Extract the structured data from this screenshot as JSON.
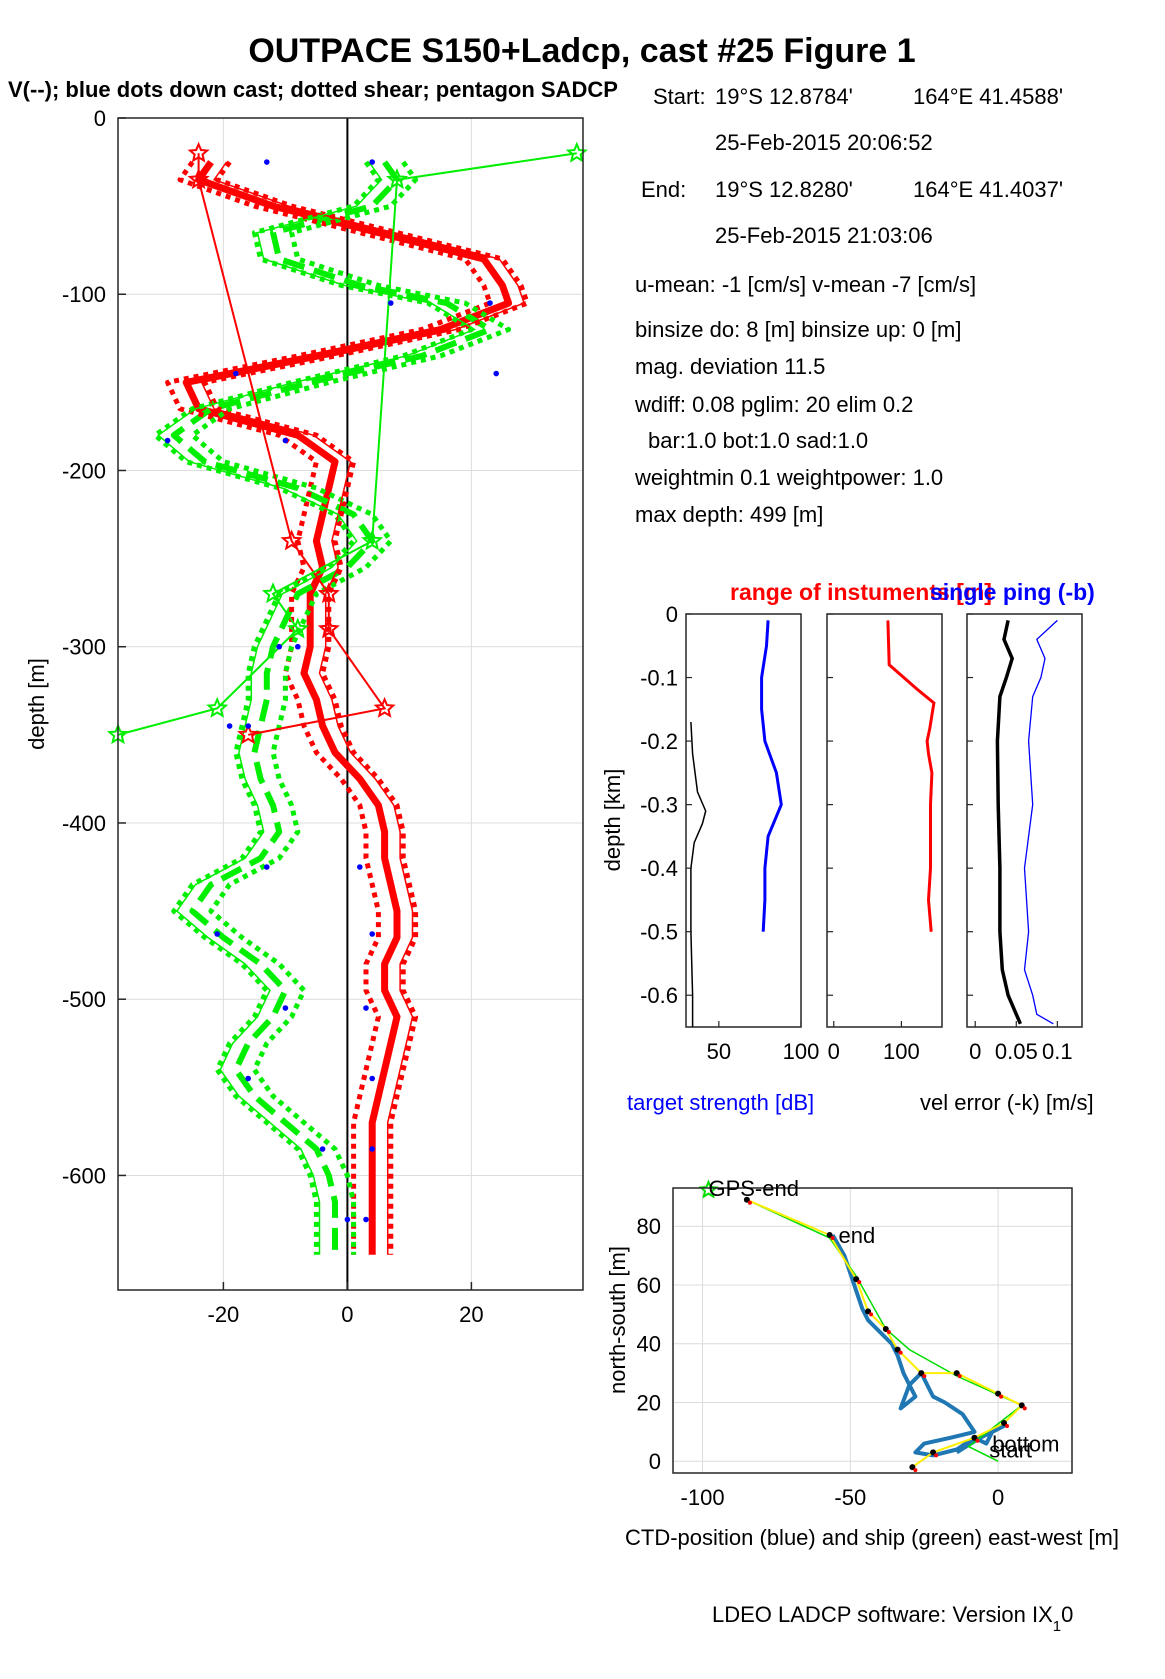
{
  "figure": {
    "title": "OUTPACE S150+Ladcp, cast #25  Figure 1",
    "subtitle": "V(--); blue dots down cast; dotted shear; pentagon SADCP",
    "footer": "LDEO LADCP software: Version IX",
    "footer_sub": "1",
    "footer_tail": "0"
  },
  "info": {
    "start_label": "Start:",
    "start_lat": "19°S 12.8784'",
    "start_lon": "164°E 41.4588'",
    "start_time": "25-Feb-2015 20:06:52",
    "end_label": "End:",
    "end_lat": "19°S 12.8280'",
    "end_lon": "164°E 41.4037'",
    "end_time": "25-Feb-2015 21:03:06",
    "mean_line": "u-mean:  -1 [cm/s]    v-mean  -7 [cm/s]",
    "binsize_line": "binsize do: 8 [m]  binsize up:  0 [m]",
    "magdev_line": "mag. deviation 11.5",
    "wdiff_line": "wdiff: 0.08  pglim: 20  elim 0.2",
    "bar_line": "bar:1.0 bot:1.0 sad:1.0",
    "weight_line": "weightmin 0.1  weightpower: 1.0",
    "maxdepth_line": "max depth: 499 [m]"
  },
  "colors": {
    "u": "#ff0000",
    "v": "#00ee00",
    "downcast_dots": "#0000ff",
    "target": "#0000ff",
    "range": "#ff0000",
    "single_ping": "#0000ff",
    "vel_error": "#000000",
    "ctd": "#1f77b4",
    "ship": "#00dd00",
    "ship_interp": "#ffee00",
    "grid": "#dcdcdc"
  },
  "chart_data": [
    {
      "type": "line",
      "title": "",
      "xlabel": "",
      "ylabel": "depth [m]",
      "xlim": [
        -37,
        38
      ],
      "ylim": [
        -665,
        0
      ],
      "xticks": [
        -20,
        0,
        20
      ],
      "yticks": [
        0,
        -100,
        -200,
        -300,
        -400,
        -500,
        -600
      ],
      "grid": true,
      "depth": [
        -25,
        -35,
        -50,
        -65,
        -80,
        -95,
        -105,
        -120,
        -135,
        -150,
        -165,
        -180,
        -195,
        -210,
        -225,
        -240,
        -255,
        -270,
        -285,
        -300,
        -315,
        -330,
        -345,
        -360,
        -375,
        -390,
        -405,
        -420,
        -435,
        -450,
        -465,
        -480,
        -495,
        -510,
        -525,
        -540,
        -555,
        -570,
        -585,
        -600,
        -615,
        -630,
        -645
      ],
      "series": [
        {
          "name": "u",
          "values": [
            -22,
            -24,
            -12,
            5,
            22,
            25,
            26,
            15,
            -5,
            -26,
            -24,
            -8,
            -2,
            -3,
            -4,
            -5,
            -4,
            -6,
            -6,
            -6,
            -7,
            -5,
            -4,
            -2,
            2,
            5,
            6,
            6,
            7,
            8,
            8,
            6,
            6,
            8,
            7,
            6,
            5,
            4,
            4,
            4,
            4,
            4,
            4
          ]
        },
        {
          "name": "v",
          "values": [
            6,
            8,
            4,
            -12,
            -11,
            2,
            16,
            23,
            12,
            -6,
            -22,
            -28,
            -23,
            -8,
            1,
            4,
            0,
            -8,
            -10,
            -12,
            -13,
            -13,
            -14,
            -15,
            -14,
            -12,
            -11,
            -14,
            -22,
            -25,
            -20,
            -14,
            -10,
            -12,
            -16,
            -18,
            -15,
            -10,
            -5,
            -3,
            -2,
            -2,
            -2
          ]
        },
        {
          "name": "",
          "values": [
            -19,
            -21,
            -9,
            8,
            25,
            28,
            29,
            18,
            -2,
            -23,
            -21,
            -5,
            1,
            0,
            -1,
            -2,
            -1,
            -3,
            -3,
            -3,
            -4,
            -2,
            -1,
            1,
            5,
            8,
            9,
            9,
            10,
            11,
            11,
            9,
            9,
            11,
            10,
            9,
            8,
            7,
            7,
            7,
            7,
            7,
            7
          ]
        },
        {
          "name": "",
          "values": [
            -25,
            -27,
            -15,
            2,
            19,
            22,
            23,
            12,
            -8,
            -29,
            -27,
            -11,
            -5,
            -6,
            -7,
            -8,
            -7,
            -9,
            -9,
            -9,
            -10,
            -8,
            -7,
            -5,
            -1,
            2,
            3,
            3,
            4,
            5,
            5,
            3,
            3,
            5,
            4,
            3,
            2,
            1,
            1,
            1,
            1,
            1,
            1
          ]
        },
        {
          "name": "",
          "values": [
            9,
            11,
            7,
            -9,
            -8,
            5,
            19,
            26,
            15,
            -3,
            -19,
            -25,
            -20,
            -5,
            4,
            7,
            3,
            -5,
            -7,
            -9,
            -10,
            -10,
            -11,
            -12,
            -11,
            -9,
            -8,
            -11,
            -19,
            -22,
            -17,
            -11,
            -7,
            -9,
            -13,
            -15,
            -12,
            -7,
            -2,
            0,
            1,
            1,
            1
          ]
        },
        {
          "name": "",
          "values": [
            3,
            5,
            1,
            -15,
            -14,
            -1,
            13,
            20,
            9,
            -9,
            -25,
            -31,
            -26,
            -11,
            -2,
            1,
            -3,
            -11,
            -13,
            -15,
            -16,
            -16,
            -17,
            -18,
            -17,
            -15,
            -14,
            -17,
            -25,
            -28,
            -23,
            -17,
            -13,
            -15,
            -19,
            -21,
            -18,
            -13,
            -8,
            -6,
            -5,
            -5,
            -5
          ]
        }
      ],
      "downcast_dots": [
        {
          "depth": -25,
          "u": -13,
          "v": 4
        },
        {
          "depth": -105,
          "u": 23,
          "v": 7
        },
        {
          "depth": -145,
          "u": -18,
          "v": 24
        },
        {
          "depth": -183,
          "u": -10,
          "v": -29
        },
        {
          "depth": -300,
          "u": -8,
          "v": -11
        },
        {
          "depth": -345,
          "u": -16,
          "v": -19
        },
        {
          "depth": -425,
          "u": 2,
          "v": -13
        },
        {
          "depth": -463,
          "u": 4,
          "v": -21
        },
        {
          "depth": -505,
          "u": 3,
          "v": -10
        },
        {
          "depth": -545,
          "u": 4,
          "v": -16
        },
        {
          "depth": -585,
          "u": 4,
          "v": -4
        },
        {
          "depth": -625,
          "u": 3,
          "v": 0
        }
      ],
      "sadcp": [
        {
          "depth": -20,
          "u": -24,
          "v": 37
        },
        {
          "depth": -35,
          "u": -24,
          "v": 8
        },
        {
          "depth": -240,
          "u": -9,
          "v": 4
        },
        {
          "depth": -270,
          "u": -3,
          "v": -12
        },
        {
          "depth": -290,
          "u": -3,
          "v": -8
        },
        {
          "depth": -335,
          "u": 6,
          "v": -21
        },
        {
          "depth": -350,
          "u": -16,
          "v": -37
        }
      ]
    },
    {
      "type": "line",
      "title": "range of instuments [m]",
      "xlabel": "target strength [dB]",
      "ylabel": "depth [km]",
      "xlim": [
        30,
        100
      ],
      "ylim": [
        -0.65,
        0
      ],
      "xticks": [
        50,
        100
      ],
      "yticks": [
        0,
        -0.1,
        -0.2,
        -0.3,
        -0.4,
        -0.5,
        -0.6
      ],
      "depth": [
        -0.01,
        -0.05,
        -0.1,
        -0.15,
        -0.2,
        -0.25,
        -0.3,
        -0.35,
        -0.4,
        -0.45,
        -0.5
      ],
      "series": [
        {
          "name": "target strength",
          "values": [
            80,
            79,
            76,
            76,
            78,
            85,
            88,
            80,
            78,
            78,
            77
          ]
        }
      ],
      "range_curve": {
        "depth": [
          -0.17,
          -0.22,
          -0.28,
          -0.31,
          -0.33,
          -0.36,
          -0.4,
          -0.5,
          -0.6,
          -0.65
        ],
        "values": [
          33,
          34,
          37,
          42,
          40,
          35,
          33,
          33,
          34,
          34
        ]
      }
    },
    {
      "type": "line",
      "title": "",
      "xlabel": "",
      "ylabel": "",
      "xlim": [
        -10,
        160
      ],
      "ylim": [
        -0.65,
        0
      ],
      "xticks": [
        0,
        100
      ],
      "depth": [
        -0.01,
        -0.08,
        -0.12,
        -0.14,
        -0.18,
        -0.2,
        -0.22,
        -0.25,
        -0.3,
        -0.4,
        -0.45,
        -0.5
      ],
      "series": [
        {
          "name": "range",
          "values": [
            80,
            82,
            125,
            148,
            142,
            138,
            140,
            145,
            143,
            143,
            140,
            144
          ]
        }
      ]
    },
    {
      "type": "line",
      "title": "single ping (-b)",
      "xlabel": "vel error (-k) [m/s]",
      "ylabel": "",
      "xlim": [
        -0.01,
        0.13
      ],
      "ylim": [
        -0.65,
        0
      ],
      "xticks": [
        0,
        0.05,
        0.1
      ],
      "depth": [
        -0.01,
        -0.04,
        -0.07,
        -0.1,
        -0.13,
        -0.2,
        -0.3,
        -0.4,
        -0.5,
        -0.56,
        -0.6,
        -0.63,
        -0.645
      ],
      "series": [
        {
          "name": "vel error",
          "values": [
            0.04,
            0.035,
            0.045,
            0.038,
            0.03,
            0.027,
            0.028,
            0.03,
            0.03,
            0.033,
            0.04,
            0.05,
            0.055
          ]
        },
        {
          "name": "single ping",
          "values": [
            0.1,
            0.075,
            0.085,
            0.08,
            0.07,
            0.065,
            0.07,
            0.06,
            0.065,
            0.06,
            0.07,
            0.075,
            0.095
          ]
        }
      ]
    },
    {
      "type": "line",
      "title": "",
      "xlabel": "CTD-position (blue) and ship (green) east-west [m]",
      "ylabel": "north-south [m]",
      "xlim": [
        -110,
        25
      ],
      "ylim": [
        -4,
        93
      ],
      "xticks": [
        -100,
        -50,
        0
      ],
      "yticks": [
        0,
        20,
        40,
        60,
        80
      ],
      "grid": true,
      "series": [
        {
          "name": "ship",
          "x": [
            -85,
            -70,
            -57,
            -48,
            -38,
            -30,
            -14,
            8,
            -10,
            0
          ],
          "y": [
            89,
            82,
            76,
            63,
            45,
            38,
            29,
            19,
            5,
            0
          ]
        },
        {
          "name": "ship-interp",
          "x": [
            -85,
            -57,
            -48,
            -44,
            -38,
            -34,
            -26,
            -14,
            0,
            8,
            2,
            -8,
            -22,
            -29
          ],
          "y": [
            89,
            77,
            62,
            51,
            45,
            38,
            30,
            30,
            23,
            19,
            13,
            8,
            3,
            -2
          ]
        },
        {
          "name": "ctd",
          "x": [
            -56,
            -52,
            -50,
            -48,
            -46,
            -44,
            -40,
            -36,
            -34,
            -32,
            -30,
            -28,
            -33,
            -30,
            -26,
            -22,
            -18,
            -12,
            -8,
            -16,
            -25,
            -28,
            -22,
            -14,
            -8,
            -4,
            -2,
            2,
            -6,
            -14
          ],
          "y": [
            77,
            70,
            64,
            58,
            52,
            48,
            44,
            40,
            36,
            30,
            26,
            22,
            18,
            26,
            30,
            22,
            20,
            16,
            10,
            8,
            6,
            3,
            2,
            4,
            8,
            6,
            10,
            12,
            8,
            3
          ]
        }
      ],
      "labels": [
        {
          "text": "GPS-end",
          "x": -98,
          "y": 93
        },
        {
          "text": "end",
          "x": -54,
          "y": 77
        },
        {
          "text": "bottom",
          "x": -2,
          "y": 6
        },
        {
          "text": "start",
          "x": -3,
          "y": 4
        }
      ]
    }
  ]
}
